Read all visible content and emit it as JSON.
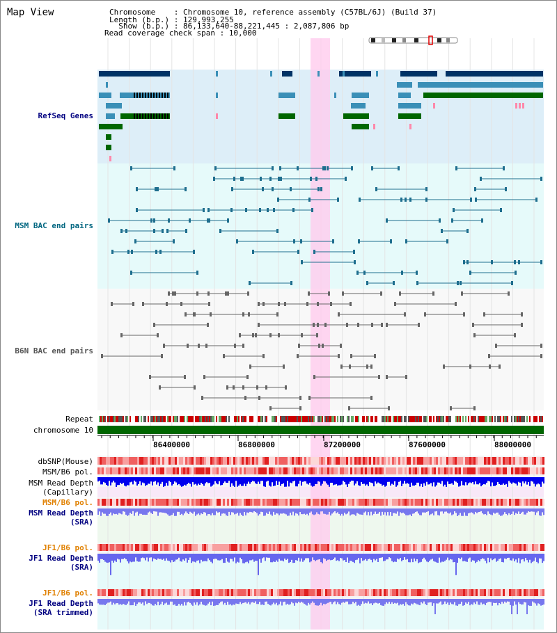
{
  "header": {
    "title": "Map View",
    "chromosome_line": "Chromosome    : Chromosome 10, reference assembly (C57BL/6J) (Build 37)",
    "length_line": "Length (b.p.) : 129,993,255",
    "show_line": "  Show (b.p.) : 86,133,640-88,221,445 : 2,087,806 bp",
    "coverage_line": "Read coverage check span : 10,000"
  },
  "tracks": {
    "refseq": "RefSeq Genes",
    "msm_bac": "MSM BAC end pairs",
    "b6n_bac": "B6N BAC end pairs",
    "repeat": "Repeat",
    "chromosome": "chromosome 10",
    "dbsnp": "dbSNP(Mouse)",
    "msm_pol": "MSM/B6 pol.",
    "msm_depth_cap": "MSM Read Depth\n(Capillary)",
    "msm_pol2": "MSM/B6 pol.",
    "msm_depth_sra": "MSM Read Depth\n(SRA)",
    "jf1_pol": "JF1/B6 pol.",
    "jf1_depth_sra": "JF1 Read Depth\n(SRA)",
    "jf1_pol2": "JF1/B6 pol.",
    "jf1_depth_trim": "JF1 Read Depth\n(SRA trimmed)"
  },
  "axis": {
    "ticks": [
      "86400000",
      "86800000",
      "87200000",
      "87600000",
      "88000000"
    ]
  },
  "colors": {
    "refseq_label": "#000080",
    "msm_bac_label": "#006680",
    "b6n_bac_label": "#555555",
    "pol_orange": "#e08000",
    "depth_blue": "#000080",
    "highlight": "#ffccee",
    "chromosome_bar": "#006600"
  }
}
